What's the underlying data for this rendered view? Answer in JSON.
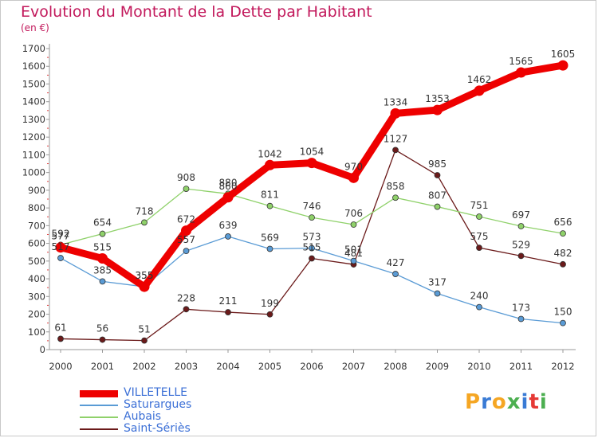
{
  "header": {
    "title": "Evolution du Montant de la Dette par Habitant",
    "subtitle": "(en €)"
  },
  "brand": {
    "letters": [
      "P",
      "r",
      "o",
      "x",
      "i",
      "t",
      "i"
    ],
    "colors": [
      "#f5a623",
      "#3a7bd5",
      "#f5a623",
      "#4caf50",
      "#3a7bd5",
      "#e53935",
      "#4caf50"
    ]
  },
  "chart_data": {
    "type": "line",
    "categories": [
      "2000",
      "2001",
      "2002",
      "2003",
      "2004",
      "2005",
      "2006",
      "2007",
      "2008",
      "2009",
      "2010",
      "2011",
      "2012"
    ],
    "ylim": [
      0,
      1700
    ],
    "yticks": [
      0,
      100,
      200,
      300,
      400,
      500,
      600,
      700,
      800,
      900,
      1000,
      1100,
      1200,
      1300,
      1400,
      1500,
      1600,
      1700
    ],
    "grid": false,
    "legend_position": "bottom-left",
    "series": [
      {
        "name": "VILLETELLE",
        "color": "#ee0000",
        "values": [
          577,
          515,
          355,
          672,
          860,
          1042,
          1054,
          970,
          1334,
          1353,
          1462,
          1565,
          1605
        ]
      },
      {
        "name": "Saturargues",
        "color": "#5a9bd5",
        "values": [
          517,
          385,
          355,
          557,
          639,
          569,
          573,
          501,
          427,
          317,
          240,
          173,
          150
        ]
      },
      {
        "name": "Aubais",
        "color": "#8fd16a",
        "values": [
          592,
          654,
          718,
          908,
          880,
          811,
          746,
          706,
          858,
          807,
          751,
          697,
          656
        ]
      },
      {
        "name": "Saint-Sériès",
        "color": "#6b1a1a",
        "values": [
          61,
          56,
          51,
          228,
          211,
          199,
          515,
          481,
          1127,
          985,
          575,
          529,
          482
        ]
      }
    ]
  }
}
